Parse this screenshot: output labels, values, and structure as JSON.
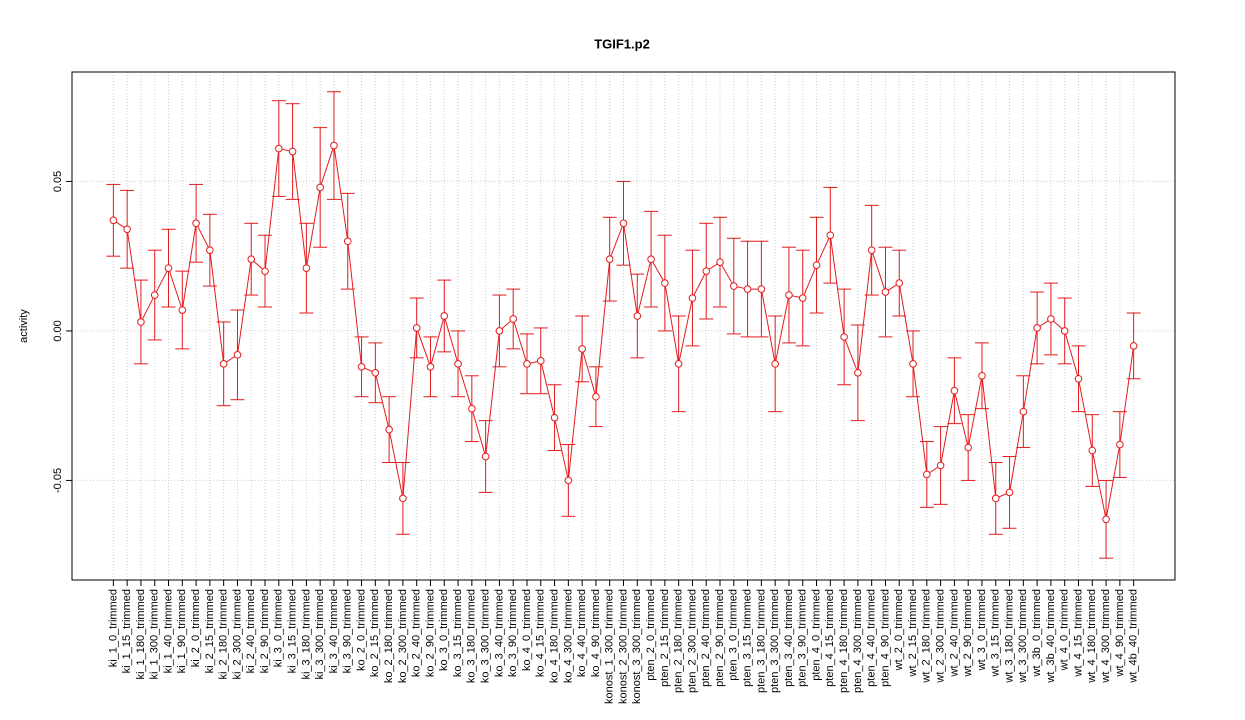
{
  "chart_data": {
    "type": "line",
    "title": "TGIF1.p2",
    "ylabel": "activity",
    "categories": [
      "ki_1_0_trimmed",
      "ki_1_15_trimmed",
      "ki_1_180_trimmed",
      "ki_1_300_trimmed",
      "ki_1_40_trimmed",
      "ki_1_90_trimmed",
      "ki_2_0_trimmed",
      "ki_2_15_trimmed",
      "ki_2_180_trimmed",
      "ki_2_300_trimmed",
      "ki_2_40_trimmed",
      "ki_2_90_trimmed",
      "ki_3_0_trimmed",
      "ki_3_15_trimmed",
      "ki_3_180_trimmed",
      "ki_3_300_trimmed",
      "ki_3_40_trimmed",
      "ki_3_90_trimmed",
      "ko_2_0_trimmed",
      "ko_2_15_trimmed",
      "ko_2_180_trimmed",
      "ko_2_300_trimmed",
      "ko_2_40_trimmed",
      "ko_2_90_trimmed",
      "ko_3_0_trimmed",
      "ko_3_15_trimmed",
      "ko_3_180_trimmed",
      "ko_3_300_trimmed",
      "ko_3_40_trimmed",
      "ko_3_90_trimmed",
      "ko_4_0_trimmed",
      "ko_4_15_trimmed",
      "ko_4_180_trimmed",
      "ko_4_300_trimmed",
      "ko_4_40_trimmed",
      "ko_4_90_trimmed",
      "konost_1_300_trimmed",
      "konost_2_300_trimmed",
      "konost_3_300_trimmed",
      "pten_2_0_trimmed",
      "pten_2_15_trimmed",
      "pten_2_180_trimmed",
      "pten_2_300_trimmed",
      "pten_2_40_trimmed",
      "pten_2_90_trimmed",
      "pten_3_0_trimmed",
      "pten_3_15_trimmed",
      "pten_3_180_trimmed",
      "pten_3_300_trimmed",
      "pten_3_40_trimmed",
      "pten_3_90_trimmed",
      "pten_4_0_trimmed",
      "pten_4_15_trimmed",
      "pten_4_180_trimmed",
      "pten_4_300_trimmed",
      "pten_4_40_trimmed",
      "pten_4_90_trimmed",
      "wt_2_0_trimmed",
      "wt_2_15_trimmed",
      "wt_2_180_trimmed",
      "wt_2_300_trimmed",
      "wt_2_40_trimmed",
      "wt_2_90_trimmed",
      "wt_3_0_trimmed",
      "wt_3_15_trimmed",
      "wt_3_180_trimmed",
      "wt_3_300_trimmed",
      "wt_3b_0_trimmed",
      "wt_3b_40_trimmed",
      "wt_4_0_trimmed",
      "wt_4_15_trimmed",
      "wt_4_180_trimmed",
      "wt_4_300_trimmed",
      "wt_4_90_trimmed",
      "wt_4b_40_trimmed"
    ],
    "series": [
      {
        "name": "activity",
        "color": "#e41a1c",
        "values": [
          0.037,
          0.034,
          0.003,
          0.012,
          0.021,
          0.007,
          0.036,
          0.027,
          -0.011,
          -0.008,
          0.024,
          0.02,
          0.061,
          0.06,
          0.021,
          0.048,
          0.062,
          0.03,
          -0.012,
          -0.014,
          -0.033,
          -0.056,
          0.001,
          -0.012,
          0.005,
          -0.011,
          -0.026,
          -0.042,
          0.0,
          0.004,
          -0.011,
          -0.01,
          -0.029,
          -0.05,
          -0.006,
          -0.022,
          0.024,
          0.036,
          0.005,
          0.024,
          0.016,
          -0.011,
          0.011,
          0.02,
          0.023,
          0.015,
          0.014,
          0.014,
          -0.011,
          0.012,
          0.011,
          0.022,
          0.032,
          -0.002,
          -0.014,
          0.027,
          0.013,
          0.016,
          -0.011,
          -0.048,
          -0.045,
          -0.02,
          -0.039,
          -0.015,
          -0.056,
          -0.054,
          -0.027,
          0.001,
          0.004,
          0.0,
          -0.016,
          -0.04,
          -0.063,
          -0.038,
          -0.005
        ],
        "errors": [
          0.012,
          0.013,
          0.014,
          0.015,
          0.013,
          0.013,
          0.013,
          0.012,
          0.014,
          0.015,
          0.012,
          0.012,
          0.016,
          0.016,
          0.015,
          0.02,
          0.018,
          0.016,
          0.01,
          0.01,
          0.011,
          0.012,
          0.01,
          0.01,
          0.012,
          0.011,
          0.011,
          0.012,
          0.012,
          0.01,
          0.01,
          0.011,
          0.011,
          0.012,
          0.011,
          0.01,
          0.014,
          0.014,
          0.014,
          0.016,
          0.016,
          0.016,
          0.016,
          0.016,
          0.015,
          0.016,
          0.016,
          0.016,
          0.016,
          0.016,
          0.016,
          0.016,
          0.016,
          0.016,
          0.016,
          0.015,
          0.015,
          0.011,
          0.011,
          0.011,
          0.013,
          0.011,
          0.011,
          0.011,
          0.012,
          0.012,
          0.012,
          0.012,
          0.012,
          0.011,
          0.011,
          0.012,
          0.013,
          0.011,
          0.011
        ]
      }
    ],
    "ylim": [
      -0.0833,
      0.0866
    ],
    "yticks": [
      {
        "value": -0.05,
        "label": "-0.05"
      },
      {
        "value": 0,
        "label": "0.00"
      },
      {
        "value": 0.05,
        "label": "0.05"
      }
    ],
    "grid": true
  }
}
